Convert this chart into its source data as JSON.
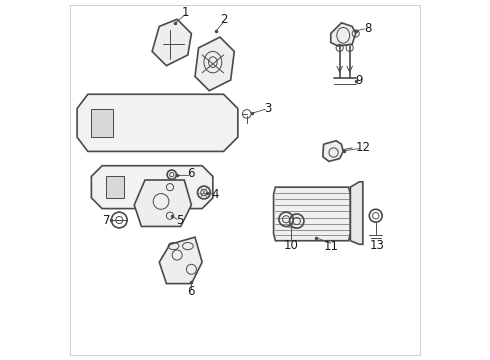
{
  "background_color": "#ffffff",
  "line_color": "#4a4a4a",
  "text_color": "#1a1a1a",
  "fig_width": 4.9,
  "fig_height": 3.6,
  "dpi": 100,
  "lw_main": 1.2,
  "lw_thin": 0.7,
  "lw_leader": 0.6,
  "fontsize": 8.5
}
